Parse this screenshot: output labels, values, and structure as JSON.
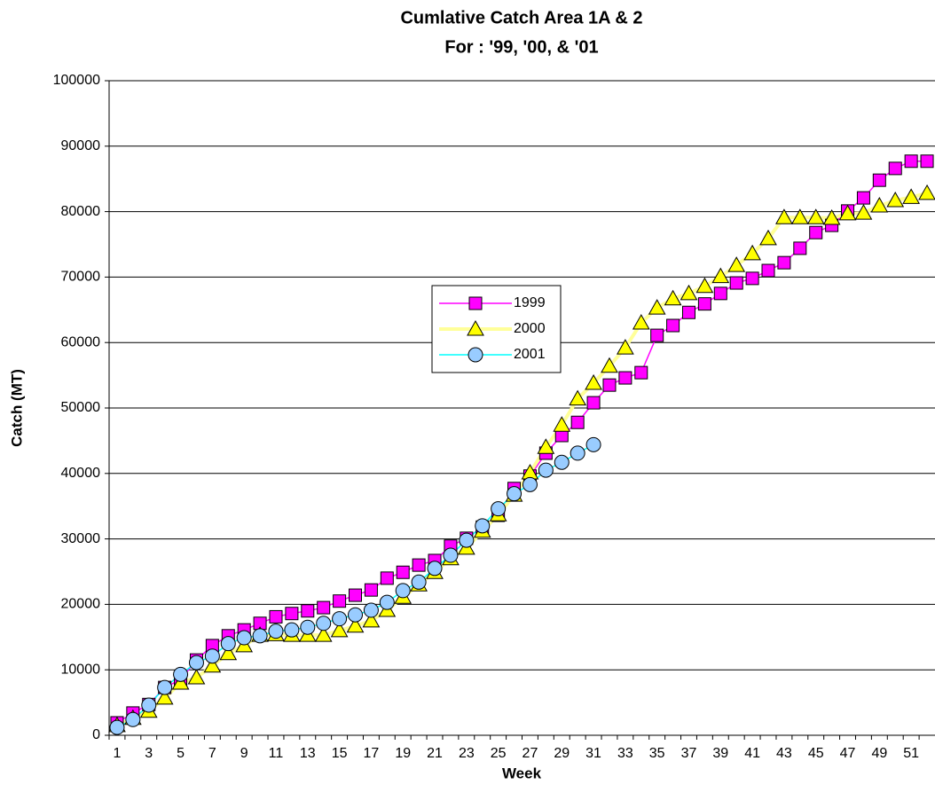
{
  "chart_data": {
    "type": "line",
    "title": "Cumlative Catch Area 1A & 2",
    "subtitle": "For : '99, '00, & '01",
    "x_label": "Week",
    "y_label": "Catch (MT)",
    "categories": [
      "1",
      null,
      "3",
      null,
      "5",
      null,
      "7",
      null,
      "9",
      null,
      "11",
      null,
      "13",
      null,
      "15",
      null,
      "17",
      null,
      "19",
      null,
      "21",
      null,
      "23",
      null,
      "25",
      null,
      "27",
      null,
      "29",
      null,
      "31",
      null,
      "33",
      null,
      "35",
      null,
      "37",
      null,
      "39",
      null,
      "41",
      null,
      "43",
      null,
      "45",
      null,
      "47",
      null,
      "49",
      null,
      "51",
      null
    ],
    "ylim": [
      0,
      100000
    ],
    "yticks": [
      0,
      10000,
      20000,
      30000,
      40000,
      50000,
      60000,
      70000,
      80000,
      90000,
      100000
    ],
    "grid": true,
    "legend_position": "center",
    "series": [
      {
        "name": "1999",
        "color": "#ff00ff",
        "line_color": "#ff00ff",
        "marker": "square",
        "values": [
          1900,
          3400,
          4700,
          7300,
          8500,
          11500,
          13700,
          15200,
          16100,
          17100,
          18100,
          18600,
          19000,
          19500,
          20500,
          21400,
          22200,
          24000,
          24900,
          26000,
          26700,
          28900,
          30100,
          31800,
          33600,
          37700,
          39600,
          43100,
          45800,
          47800,
          50800,
          53500,
          54600,
          55400,
          61100,
          62600,
          64600,
          65900,
          67500,
          69100,
          69800,
          71000,
          72200,
          74400,
          76800,
          77900,
          80100,
          82100,
          84800,
          86600,
          87700,
          87700
        ]
      },
      {
        "name": "2000",
        "color": "#ffff00",
        "line_color": "#ffff99",
        "marker": "triangle",
        "values": [
          1500,
          2600,
          3700,
          5700,
          8000,
          8800,
          10600,
          12500,
          13700,
          15300,
          15400,
          15300,
          15300,
          15300,
          16000,
          16700,
          17500,
          19100,
          21100,
          23000,
          24900,
          27000,
          28600,
          31200,
          33700,
          36700,
          40100,
          44000,
          47400,
          51400,
          53800,
          56400,
          59200,
          63000,
          65300,
          66700,
          67500,
          68600,
          70100,
          71800,
          73600,
          75900,
          79100,
          79100,
          79100,
          79000,
          79700,
          79800,
          80900,
          81700,
          82200,
          82800
        ]
      },
      {
        "name": "2001",
        "color": "#99ccff",
        "line_color": "#00ffff",
        "marker": "circle",
        "values": [
          1200,
          2400,
          4600,
          7300,
          9300,
          11100,
          12100,
          14000,
          14900,
          15200,
          15900,
          16100,
          16500,
          17100,
          17800,
          18400,
          19100,
          20300,
          22100,
          23400,
          25500,
          27500,
          29800,
          32000,
          34600,
          36900,
          38300,
          40500,
          41700,
          43100,
          44400,
          null,
          null,
          null,
          null,
          null,
          null,
          null,
          null,
          null,
          null,
          null,
          null,
          null,
          null,
          null,
          null,
          null,
          null,
          null,
          null,
          null
        ]
      }
    ]
  }
}
